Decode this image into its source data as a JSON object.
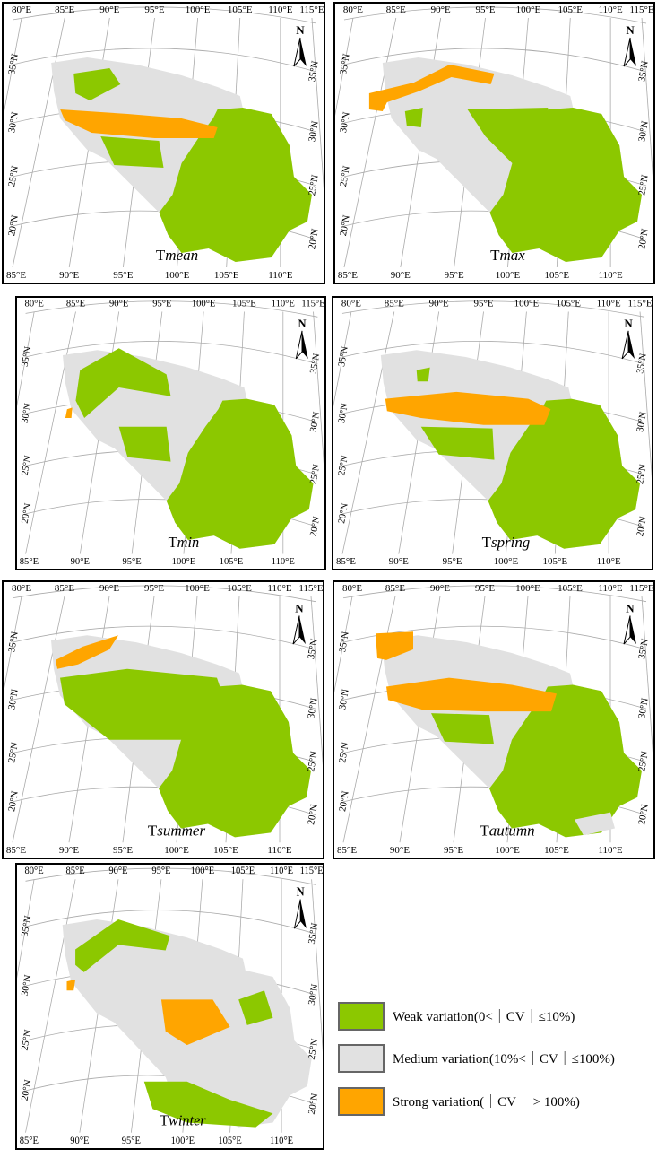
{
  "graticule": {
    "top": [
      "80°E",
      "85°E",
      "90°E",
      "95°E",
      "100°E",
      "105°E",
      "110°E",
      "115°E"
    ],
    "bottom": [
      "85°E",
      "90°E",
      "95°E",
      "100°E",
      "105°E",
      "110°E"
    ],
    "left": [
      "35°N",
      "30°N",
      "25°N",
      "20°N"
    ],
    "right": [
      "35°N",
      "30°N",
      "25°N",
      "20°N"
    ]
  },
  "north_label": "N",
  "panels": [
    {
      "title_main": "T",
      "title_italic": "mean"
    },
    {
      "title_main": "T",
      "title_italic": "max"
    },
    {
      "title_main": "T",
      "title_italic": "min"
    },
    {
      "title_main": "T",
      "title_italic": "spring"
    },
    {
      "title_main": "T",
      "title_italic": "summer"
    },
    {
      "title_main": "T",
      "title_italic": "autumn"
    },
    {
      "title_main": "T",
      "title_italic": "winter"
    }
  ],
  "legend": [
    {
      "label": "Weak variation(0<｜CV｜≤10%)",
      "color": "#8cc800"
    },
    {
      "label": "Medium variation(10%<｜CV｜≤100%)",
      "color": "#e1e1e1"
    },
    {
      "label": "Strong variation(｜CV｜ > 100%)",
      "color": "#ffa500"
    }
  ]
}
